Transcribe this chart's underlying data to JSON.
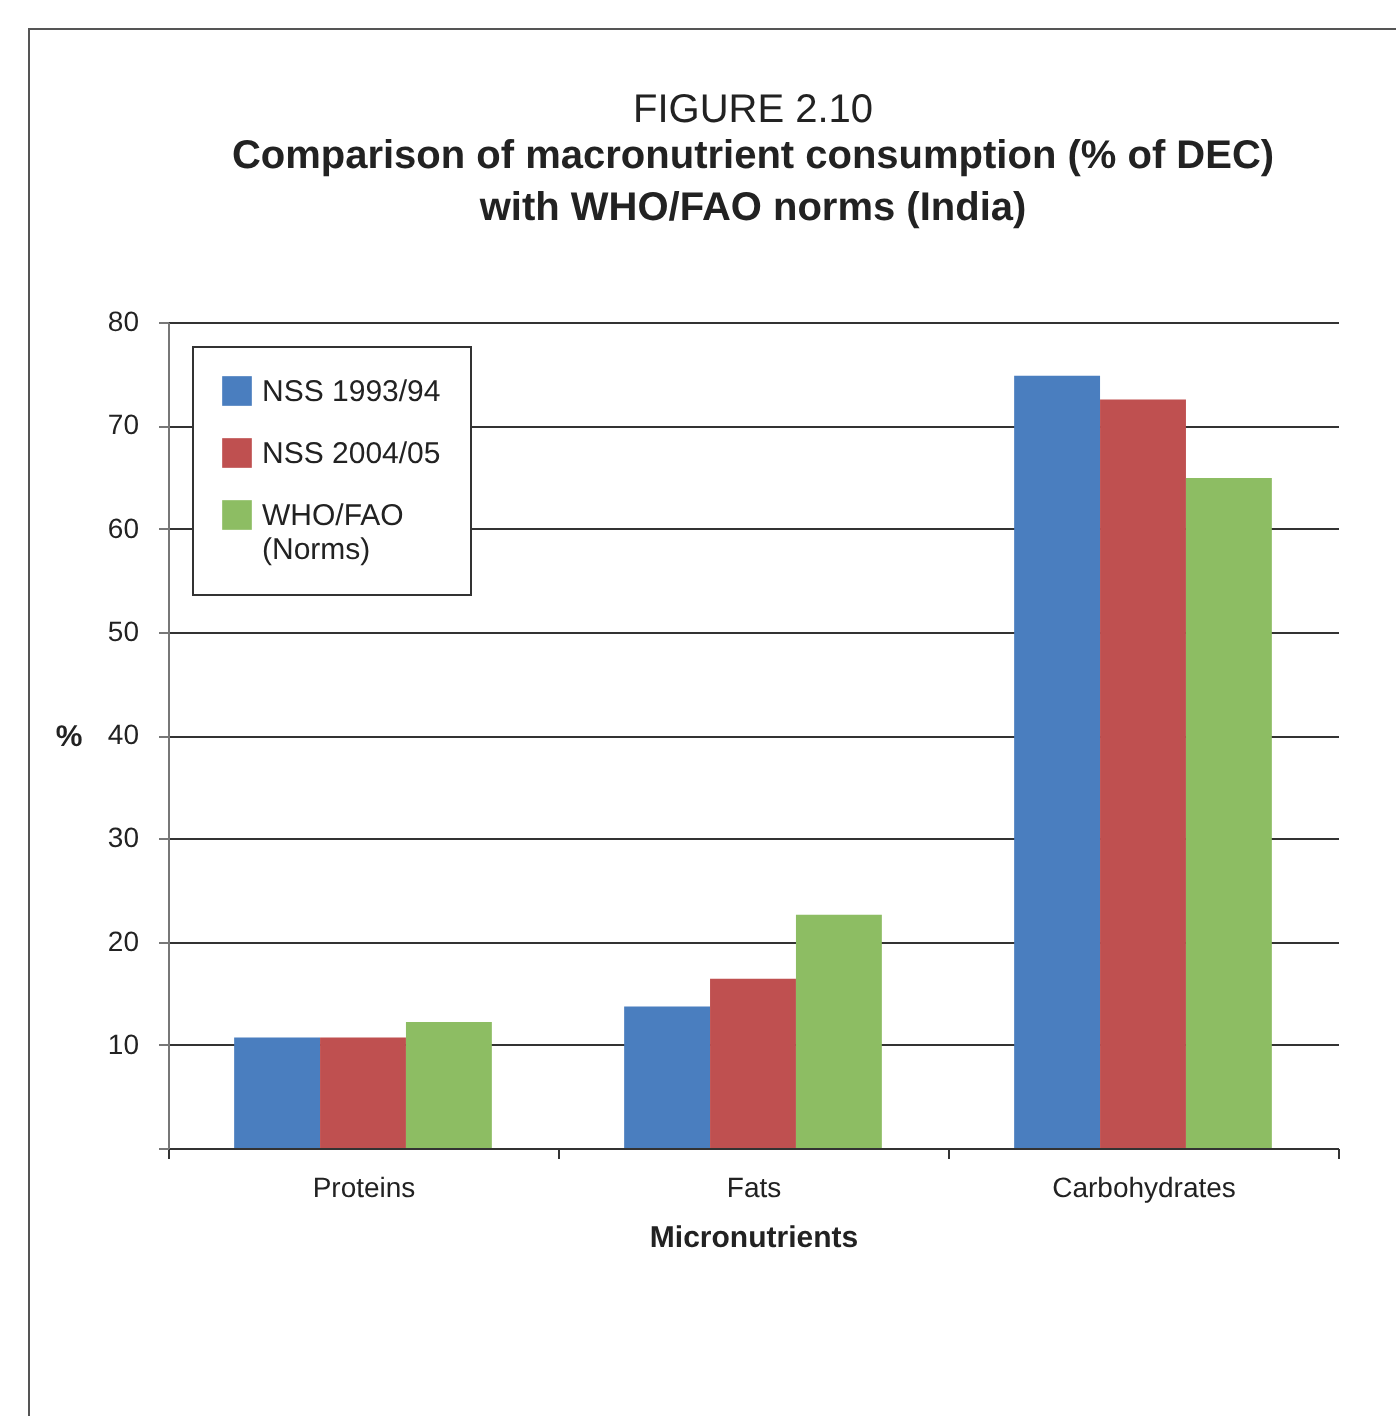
{
  "chart_data": {
    "type": "bar",
    "title": "FIGURE 2.10",
    "subtitle": "Comparison of macronutrient consumption (% of DEC) with WHO/FAO norms (India)",
    "xlabel": "Micronutrients",
    "ylabel": "%",
    "categories": [
      "Proteins",
      "Fats",
      "Carbohydrates"
    ],
    "series": [
      {
        "name": "NSS 1993/94",
        "color": "#4a7ebf",
        "values": [
          10.7,
          13.7,
          74.8
        ]
      },
      {
        "name": "NSS 2004/05",
        "color": "#bf5050",
        "values": [
          10.7,
          16.4,
          72.5
        ]
      },
      {
        "name": "WHO/FAO (Norms)",
        "color": "#8dbd63",
        "values": [
          12.2,
          22.6,
          64.9
        ]
      }
    ],
    "ylim": [
      0,
      80
    ],
    "yticks": [
      {
        "value": 0,
        "label": null
      },
      10,
      20,
      30,
      40,
      50,
      60,
      70,
      80
    ],
    "grid": "y",
    "legend": "top left"
  }
}
